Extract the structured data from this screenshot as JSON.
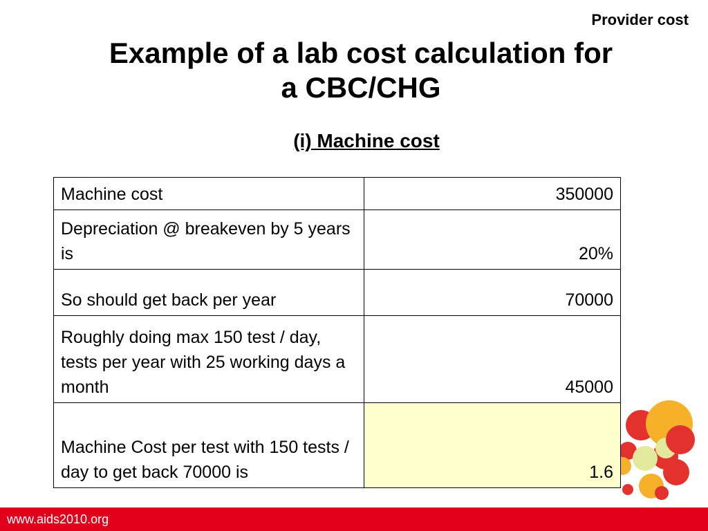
{
  "header": {
    "tag": "Provider cost",
    "title_line1": "Example of a lab cost calculation for",
    "title_line2": "a CBC/CHG",
    "subtitle": "(i) Machine cost"
  },
  "table": {
    "rows": [
      {
        "label": "Machine cost",
        "value": "350000"
      },
      {
        "label": "Depreciation @ breakeven by 5 years is",
        "value": "20%"
      },
      {
        "label": "So should get back per year",
        "value": "70000"
      },
      {
        "label": "Roughly doing max 150 test  / day, tests per year with 25 working days a month",
        "value": "45000"
      },
      {
        "label": "Machine Cost per test with 150 tests / day to get back 70000 is",
        "value": "1.6"
      }
    ],
    "highlight_color": "#ffffcc"
  },
  "footer": {
    "url": "www.aids2010.org",
    "color": "#e0001b"
  }
}
